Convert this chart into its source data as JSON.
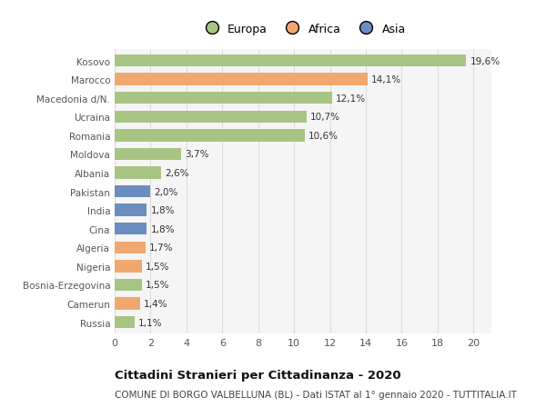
{
  "categories": [
    "Russia",
    "Camerun",
    "Bosnia-Erzegovina",
    "Nigeria",
    "Algeria",
    "Cina",
    "India",
    "Pakistan",
    "Albania",
    "Moldova",
    "Romania",
    "Ucraina",
    "Macedonia d/N.",
    "Marocco",
    "Kosovo"
  ],
  "values": [
    1.1,
    1.4,
    1.5,
    1.5,
    1.7,
    1.8,
    1.8,
    2.0,
    2.6,
    3.7,
    10.6,
    10.7,
    12.1,
    14.1,
    19.6
  ],
  "labels": [
    "1,1%",
    "1,4%",
    "1,5%",
    "1,5%",
    "1,7%",
    "1,8%",
    "1,8%",
    "2,0%",
    "2,6%",
    "3,7%",
    "10,6%",
    "10,7%",
    "12,1%",
    "14,1%",
    "19,6%"
  ],
  "continents": [
    "Europa",
    "Africa",
    "Europa",
    "Africa",
    "Africa",
    "Asia",
    "Asia",
    "Asia",
    "Europa",
    "Europa",
    "Europa",
    "Europa",
    "Europa",
    "Africa",
    "Europa"
  ],
  "colors": {
    "Europa": "#a8c484",
    "Africa": "#f0a870",
    "Asia": "#6b8dbf"
  },
  "legend_order": [
    "Europa",
    "Africa",
    "Asia"
  ],
  "xlim": [
    0,
    21
  ],
  "xticks": [
    0,
    2,
    4,
    6,
    8,
    10,
    12,
    14,
    16,
    18,
    20
  ],
  "title": "Cittadini Stranieri per Cittadinanza - 2020",
  "subtitle": "COMUNE DI BORGO VALBELLUNA (BL) - Dati ISTAT al 1° gennaio 2020 - TUTTITALIA.IT",
  "bg_color": "#ffffff",
  "plot_bg_color": "#f5f5f5",
  "grid_color": "#dddddd",
  "bar_height": 0.65,
  "label_fontsize": 7.5,
  "ytick_fontsize": 7.5,
  "xtick_fontsize": 8,
  "title_fontsize": 9.5,
  "subtitle_fontsize": 7.5,
  "legend_fontsize": 9
}
